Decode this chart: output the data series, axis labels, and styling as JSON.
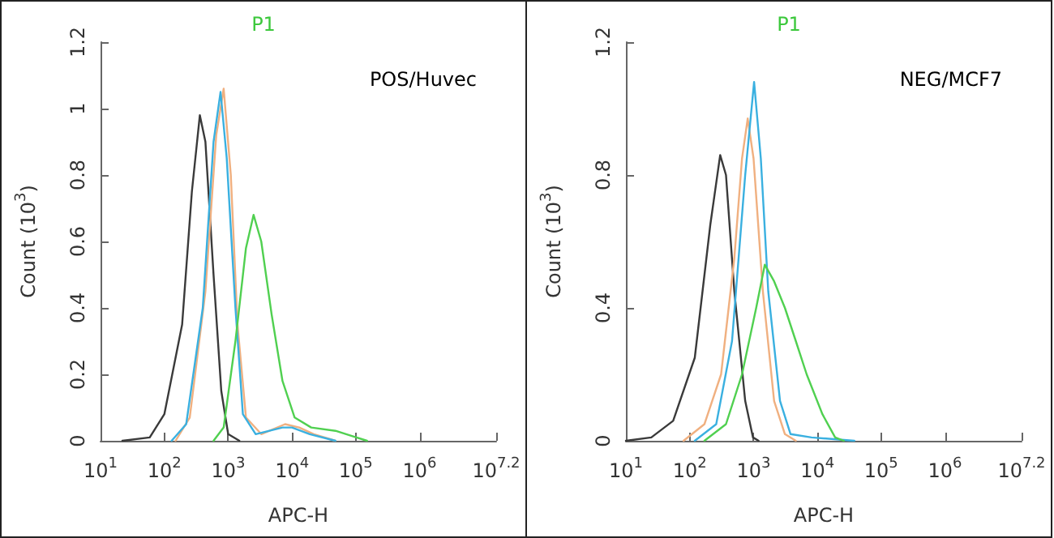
{
  "chart_data": [
    {
      "type": "line",
      "title": "P1",
      "xlabel": "APC-H",
      "ylabel": "Count (10$^{3}$)",
      "log": "x",
      "grid": false,
      "marker": "none",
      "line_style": "solid",
      "annotations": [
        "POS/Huvec"
      ],
      "xlim": [
        10,
        15848932
      ],
      "xticks": [
        {
          "value": 10,
          "label": "10$^{1}$"
        },
        {
          "value": 100,
          "label": "10$^{2}$"
        },
        {
          "value": 1000,
          "label": "10$^{3}$"
        },
        {
          "value": 10000,
          "label": "10$^{4}$"
        },
        {
          "value": 100000,
          "label": "10$^{5}$"
        },
        {
          "value": 1000000,
          "label": "10$^{6}$"
        },
        {
          "value": 15848932,
          "label": "10$^{7.2}$"
        }
      ],
      "ylim": [
        0,
        1.2
      ],
      "yticks": [
        0,
        0.2,
        0.4,
        0.6,
        0.8,
        1,
        1.2
      ],
      "series": [
        {
          "color": "#3a3a3a",
          "x": [
            22,
            59,
            100,
            190,
            270,
            360,
            440,
            590,
            780,
            1000,
            1500
          ],
          "values": [
            0,
            0.01,
            0.08,
            0.35,
            0.75,
            0.98,
            0.9,
            0.5,
            0.15,
            0.02,
            0
          ]
        },
        {
          "color": "#f0b080",
          "x": [
            150,
            250,
            440,
            650,
            850,
            1100,
            1400,
            1900,
            3300,
            7800,
            13000,
            22000,
            48000
          ],
          "values": [
            0,
            0.07,
            0.45,
            0.92,
            1.06,
            0.8,
            0.35,
            0.07,
            0.02,
            0.05,
            0.04,
            0.02,
            0
          ]
        },
        {
          "color": "#3ab0e0",
          "x": [
            130,
            220,
            400,
            590,
            760,
            950,
            1300,
            1700,
            2700,
            7100,
            10000,
            19000,
            48000
          ],
          "values": [
            0,
            0.05,
            0.4,
            0.9,
            1.05,
            0.85,
            0.4,
            0.08,
            0.02,
            0.04,
            0.04,
            0.02,
            0
          ]
        },
        {
          "color": "#50d050",
          "x": [
            590,
            850,
            1300,
            1900,
            2500,
            3300,
            4800,
            7100,
            11000,
            20000,
            48000,
            85000,
            150000
          ],
          "values": [
            0,
            0.04,
            0.3,
            0.58,
            0.68,
            0.6,
            0.38,
            0.18,
            0.07,
            0.04,
            0.03,
            0.015,
            0
          ]
        }
      ]
    },
    {
      "type": "line",
      "title": "P1",
      "xlabel": "APC-H",
      "ylabel": "Count (10$^{3}$)",
      "log": "x",
      "grid": false,
      "marker": "none",
      "line_style": "solid",
      "annotations": [
        "NEG/MCF7"
      ],
      "xlim": [
        10,
        15848932
      ],
      "xticks": [
        {
          "value": 10,
          "label": "10$^{1}$"
        },
        {
          "value": 100,
          "label": "10$^{2}$"
        },
        {
          "value": 1000,
          "label": "10$^{3}$"
        },
        {
          "value": 10000,
          "label": "10$^{4}$"
        },
        {
          "value": 100000,
          "label": "10$^{5}$"
        },
        {
          "value": 1000000,
          "label": "10$^{6}$"
        },
        {
          "value": 15848932,
          "label": "10$^{7.2}$"
        }
      ],
      "ylim": [
        0,
        1.2
      ],
      "yticks": [
        0,
        0.4,
        0.8,
        1.2
      ],
      "series": [
        {
          "color": "#3a3a3a",
          "x": [
            10,
            25,
            55,
            120,
            210,
            300,
            370,
            500,
            740,
            980,
            1200
          ],
          "values": [
            0,
            0.01,
            0.06,
            0.25,
            0.65,
            0.86,
            0.8,
            0.45,
            0.12,
            0.01,
            0
          ]
        },
        {
          "color": "#f0b080",
          "x": [
            80,
            170,
            310,
            500,
            660,
            810,
            1000,
            1400,
            2100,
            3100,
            4600
          ],
          "values": [
            0,
            0.05,
            0.2,
            0.55,
            0.85,
            0.97,
            0.85,
            0.45,
            0.12,
            0.02,
            0
          ]
        },
        {
          "color": "#3ab0e0",
          "x": [
            120,
            260,
            460,
            740,
            1020,
            1300,
            1700,
            2600,
            3800,
            8100,
            38000
          ],
          "values": [
            0,
            0.05,
            0.3,
            0.8,
            1.08,
            0.85,
            0.45,
            0.12,
            0.02,
            0.01,
            0
          ]
        },
        {
          "color": "#50d050",
          "x": [
            170,
            370,
            660,
            1100,
            1500,
            2100,
            3100,
            4600,
            6800,
            12000,
            19000,
            26000
          ],
          "values": [
            0,
            0.05,
            0.2,
            0.4,
            0.53,
            0.48,
            0.4,
            0.3,
            0.2,
            0.08,
            0.01,
            0
          ]
        }
      ]
    }
  ]
}
